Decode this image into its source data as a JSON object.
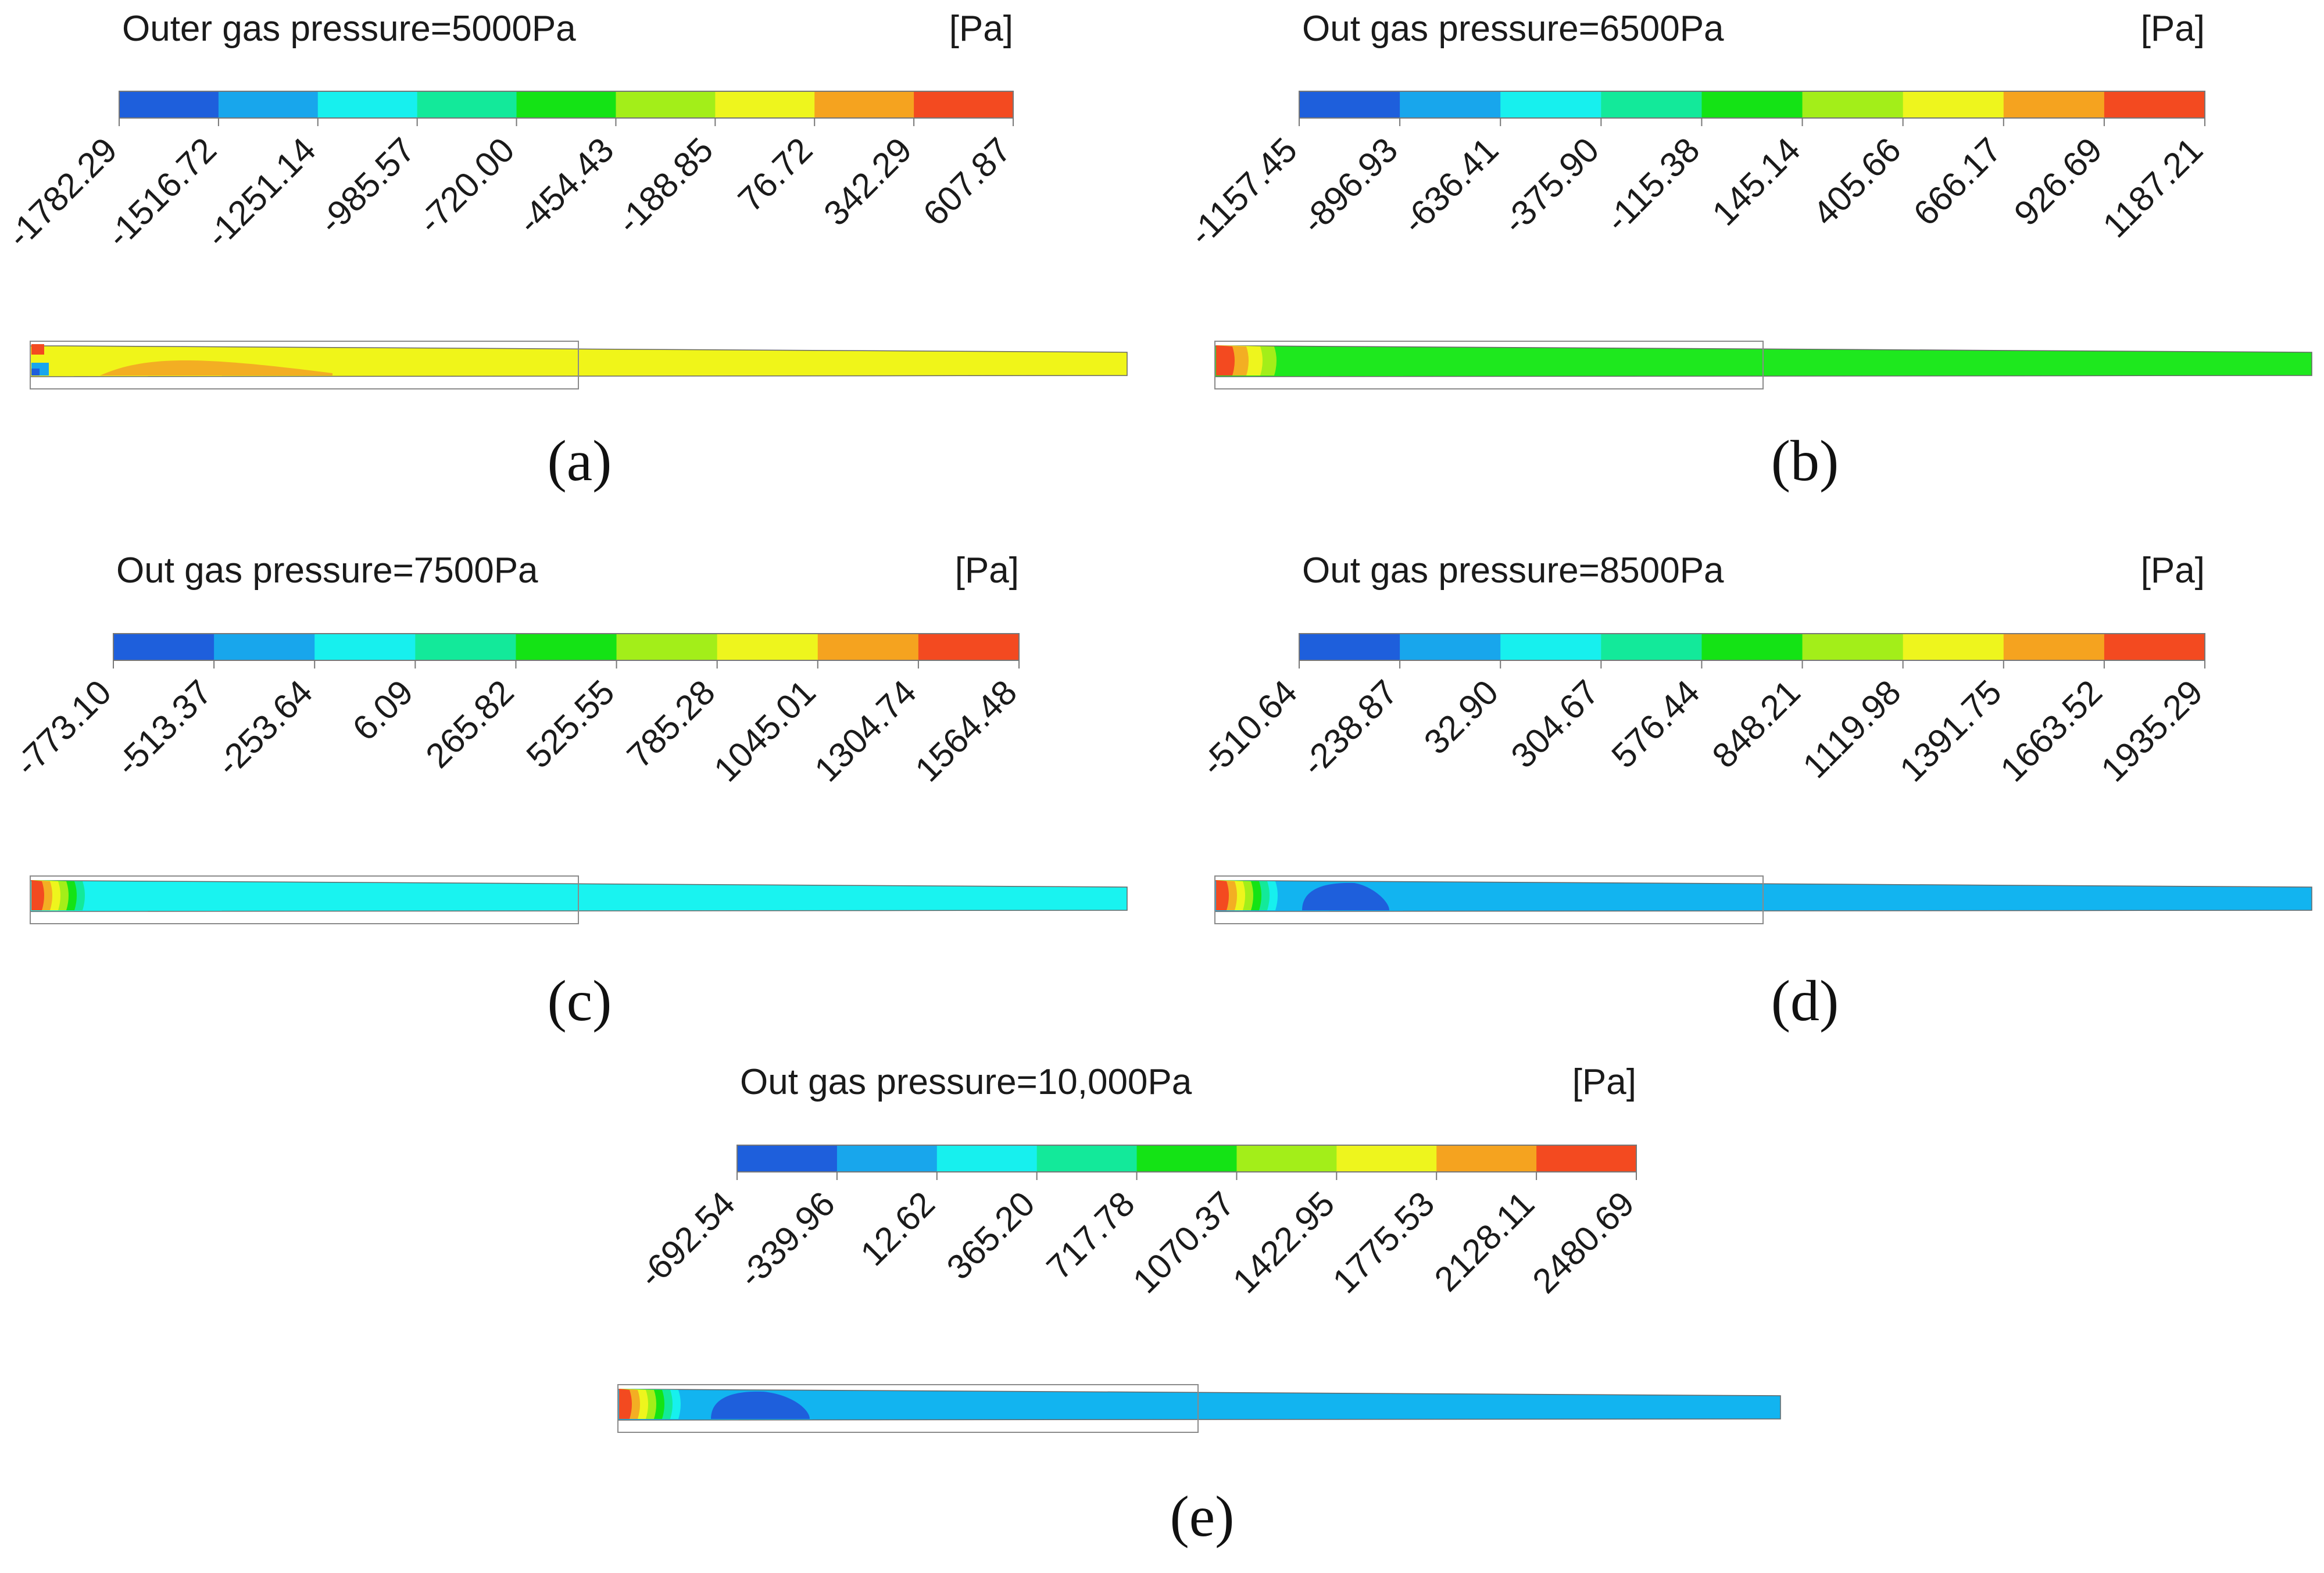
{
  "unit_label": "[Pa]",
  "palette": [
    "#1e5fdc",
    "#18a6ec",
    "#17f0ee",
    "#13e99a",
    "#14e315",
    "#a3ee19",
    "#eef51d",
    "#f5a31f",
    "#f34a20"
  ],
  "panels": [
    {
      "id": "a",
      "title": "Outer gas pressure=5000Pa",
      "caption": "(a)",
      "ticks": [
        "-1782.29",
        "-1516.72",
        "-1251.14",
        "-985.57",
        "-720.00",
        "-454.43",
        "-188.85",
        "76.72",
        "342.29",
        "607.87"
      ],
      "field_color": "#f0f519"
    },
    {
      "id": "b",
      "title": "Out gas pressure=6500Pa",
      "caption": "(b)",
      "ticks": [
        "-1157.45",
        "-896.93",
        "-636.41",
        "-375.90",
        "-115.38",
        "145.14",
        "405.66",
        "666.17",
        "926.69",
        "1187.21"
      ],
      "field_color": "#1ee81e"
    },
    {
      "id": "c",
      "title": "Out gas pressure=7500Pa",
      "caption": "(c)",
      "ticks": [
        "-773.10",
        "-513.37",
        "-253.64",
        "6.09",
        "265.82",
        "525.55",
        "785.28",
        "1045.01",
        "1304.74",
        "1564.48"
      ],
      "field_color": "#19f3f0"
    },
    {
      "id": "d",
      "title": "Out gas pressure=8500Pa",
      "caption": "(d)",
      "ticks": [
        "-510.64",
        "-238.87",
        "32.90",
        "304.67",
        "576.44",
        "848.21",
        "1119.98",
        "1391.75",
        "1663.52",
        "1935.29"
      ],
      "field_color": "#12b4f0"
    },
    {
      "id": "e",
      "title": "Out gas pressure=10,000Pa",
      "caption": "(e)",
      "ticks": [
        "-692.54",
        "-339.96",
        "12.62",
        "365.20",
        "717.78",
        "1070.37",
        "1422.95",
        "1775.53",
        "2128.11",
        "2480.69"
      ],
      "field_color": "#12b4f0"
    }
  ]
}
